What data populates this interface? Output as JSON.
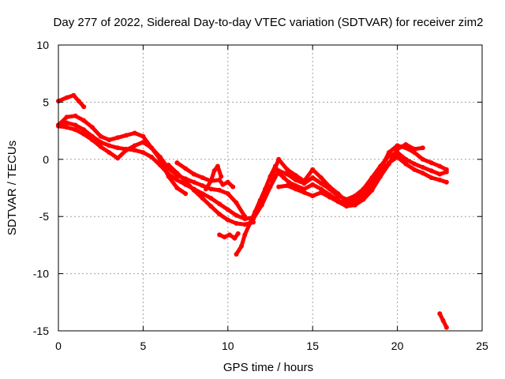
{
  "chart_data": {
    "type": "scatter",
    "title": "Day 277 of 2022, Sidereal Day-to-day VTEC variation (SDTVAR) for receiver zim2",
    "xlabel": "GPS time / hours",
    "ylabel": "SDTVAR / TECUs",
    "xlim": [
      0,
      25
    ],
    "ylim": [
      -15,
      10
    ],
    "xticks": [
      0,
      5,
      10,
      15,
      20,
      25
    ],
    "yticks": [
      -15,
      -10,
      -5,
      0,
      5,
      10
    ],
    "xtick_labels": [
      "0",
      "5",
      "10",
      "15",
      "20",
      "25"
    ],
    "ytick_labels": [
      "-15",
      "-10",
      "-5",
      "0",
      "5",
      "10"
    ],
    "grid": true,
    "legend": "none",
    "marker_color": "#ff0000",
    "series": [
      {
        "name": "arc-top",
        "x": [
          0.0,
          0.5,
          0.9,
          1.2,
          1.5
        ],
        "y": [
          5.1,
          5.4,
          5.6,
          5.1,
          4.6
        ]
      },
      {
        "name": "arc-a",
        "x": [
          0.0,
          0.5,
          1.0,
          1.5,
          2.0,
          2.5,
          3.0,
          3.5,
          4.0,
          4.5,
          5.0,
          5.5,
          6.0,
          6.5,
          7.0,
          7.5,
          8.0,
          8.5,
          9.0,
          9.5,
          10.0,
          10.5,
          11.0
        ],
        "y": [
          3.0,
          3.7,
          3.8,
          3.4,
          2.8,
          2.0,
          1.7,
          1.9,
          2.1,
          2.3,
          2.0,
          1.0,
          0.2,
          -0.8,
          -1.4,
          -1.7,
          -2.0,
          -2.3,
          -2.6,
          -2.7,
          -3.0,
          -3.8,
          -5.0
        ]
      },
      {
        "name": "arc-b",
        "x": [
          0.0,
          0.5,
          1.0,
          1.5,
          2.0,
          2.5,
          3.0,
          3.5,
          4.0,
          4.5,
          5.0,
          5.5,
          6.0,
          6.5,
          7.0,
          7.5,
          8.0,
          8.5,
          9.0,
          9.5,
          10.0,
          10.5,
          11.0,
          11.5
        ],
        "y": [
          3.0,
          3.2,
          3.0,
          2.6,
          2.0,
          1.5,
          1.2,
          1.0,
          0.9,
          0.8,
          0.6,
          0.2,
          -0.5,
          -1.3,
          -1.8,
          -2.2,
          -2.6,
          -3.0,
          -3.4,
          -3.9,
          -4.4,
          -4.9,
          -5.2,
          -5.1
        ]
      },
      {
        "name": "arc-c",
        "x": [
          0.0,
          0.5,
          1.0,
          1.5,
          2.0,
          2.5,
          3.0,
          3.5,
          4.0,
          4.5,
          5.0,
          5.5,
          6.0,
          6.5,
          7.0,
          7.5
        ],
        "y": [
          2.9,
          2.8,
          2.6,
          2.2,
          1.7,
          1.1,
          0.6,
          0.1,
          0.8,
          1.2,
          1.5,
          1.0,
          0.0,
          -1.5,
          -2.5,
          -3.0
        ]
      },
      {
        "name": "arc-d",
        "x": [
          6.5,
          7.0,
          7.5,
          8.0,
          8.5,
          9.0,
          9.5,
          10.0,
          10.5,
          11.0,
          11.5
        ],
        "y": [
          -0.5,
          -1.2,
          -1.9,
          -2.7,
          -3.4,
          -4.1,
          -4.8,
          -5.3,
          -5.6,
          -5.7,
          -5.5
        ]
      },
      {
        "name": "arc-e",
        "x": [
          7.0,
          7.5,
          8.0,
          8.5,
          9.0,
          9.5,
          9.7,
          10.0,
          10.3
        ],
        "y": [
          -0.3,
          -0.8,
          -1.3,
          -1.6,
          -1.9,
          -1.8,
          -2.2,
          -2.0,
          -2.4
        ]
      },
      {
        "name": "arc-f",
        "x": [
          8.7,
          9.0,
          9.2,
          9.4,
          9.6
        ],
        "y": [
          -2.6,
          -1.9,
          -1.0,
          -0.6,
          -1.5
        ]
      },
      {
        "name": "arc-g",
        "x": [
          9.5,
          9.8,
          10.1,
          10.4,
          10.6
        ],
        "y": [
          -6.6,
          -6.8,
          -6.6,
          -6.9,
          -6.5
        ]
      },
      {
        "name": "arc-h",
        "x": [
          10.5,
          10.8,
          11.0,
          11.3,
          11.6,
          11.9,
          12.2,
          12.5,
          12.8,
          13.0,
          13.3,
          13.6,
          14.0,
          14.5,
          15.0,
          15.5,
          16.0,
          16.5,
          17.0,
          17.5,
          18.0,
          18.5,
          19.0,
          19.5,
          20.0,
          20.5,
          21.0,
          21.5,
          22.0,
          22.5,
          22.9
        ],
        "y": [
          -8.3,
          -7.6,
          -6.6,
          -5.6,
          -4.6,
          -3.6,
          -2.6,
          -1.5,
          -0.6,
          -1.2,
          -1.6,
          -2.0,
          -2.3,
          -2.6,
          -2.2,
          -2.6,
          -3.1,
          -3.6,
          -3.9,
          -3.6,
          -3.2,
          -2.2,
          -1.2,
          -0.3,
          0.2,
          -0.4,
          -0.9,
          -1.2,
          -1.6,
          -1.8,
          -2.0
        ]
      },
      {
        "name": "arc-i",
        "x": [
          11.5,
          12.0,
          12.5,
          13.0,
          13.5,
          14.0,
          14.5,
          15.0,
          15.5,
          16.0,
          16.5,
          17.0,
          17.5,
          18.0,
          18.5,
          19.0,
          19.5,
          20.0,
          20.5,
          21.0,
          21.5,
          22.0,
          22.5,
          22.9
        ],
        "y": [
          -5.2,
          -4.0,
          -2.4,
          -1.0,
          -1.3,
          -1.8,
          -2.1,
          -1.6,
          -2.1,
          -2.6,
          -3.2,
          -3.5,
          -3.2,
          -2.6,
          -1.6,
          -0.6,
          0.3,
          0.6,
          0.0,
          -0.4,
          -0.7,
          -1.0,
          -1.3,
          -1.1
        ]
      },
      {
        "name": "arc-j",
        "x": [
          12.5,
          13.0,
          13.5,
          14.0,
          14.5,
          15.0,
          15.5,
          16.0,
          16.5,
          17.0,
          17.5,
          18.0,
          18.5,
          19.0,
          19.5,
          20.0,
          20.5,
          21.0,
          21.5,
          22.0,
          22.5,
          22.9
        ],
        "y": [
          -1.8,
          0.0,
          -0.9,
          -1.4,
          -1.9,
          -0.9,
          -1.6,
          -2.4,
          -3.0,
          -3.7,
          -3.5,
          -3.0,
          -2.0,
          -0.9,
          0.6,
          1.2,
          1.0,
          0.6,
          0.0,
          -0.3,
          -0.6,
          -0.9
        ]
      },
      {
        "name": "arc-k",
        "x": [
          13.0,
          13.5,
          14.0,
          14.5,
          15.0,
          15.5,
          16.0,
          16.5,
          17.0,
          17.5,
          18.0,
          18.5,
          19.0,
          19.5,
          20.0,
          20.5,
          21.0,
          21.5
        ],
        "y": [
          -2.4,
          -2.3,
          -2.6,
          -2.9,
          -3.2,
          -2.9,
          -3.3,
          -3.7,
          -4.1,
          -4.0,
          -3.5,
          -2.7,
          -1.5,
          -0.4,
          0.9,
          1.3,
          0.9,
          1.0
        ]
      },
      {
        "name": "arc-l",
        "x": [
          22.5,
          22.7,
          22.9
        ],
        "y": [
          -13.5,
          -14.1,
          -14.7
        ]
      }
    ]
  }
}
